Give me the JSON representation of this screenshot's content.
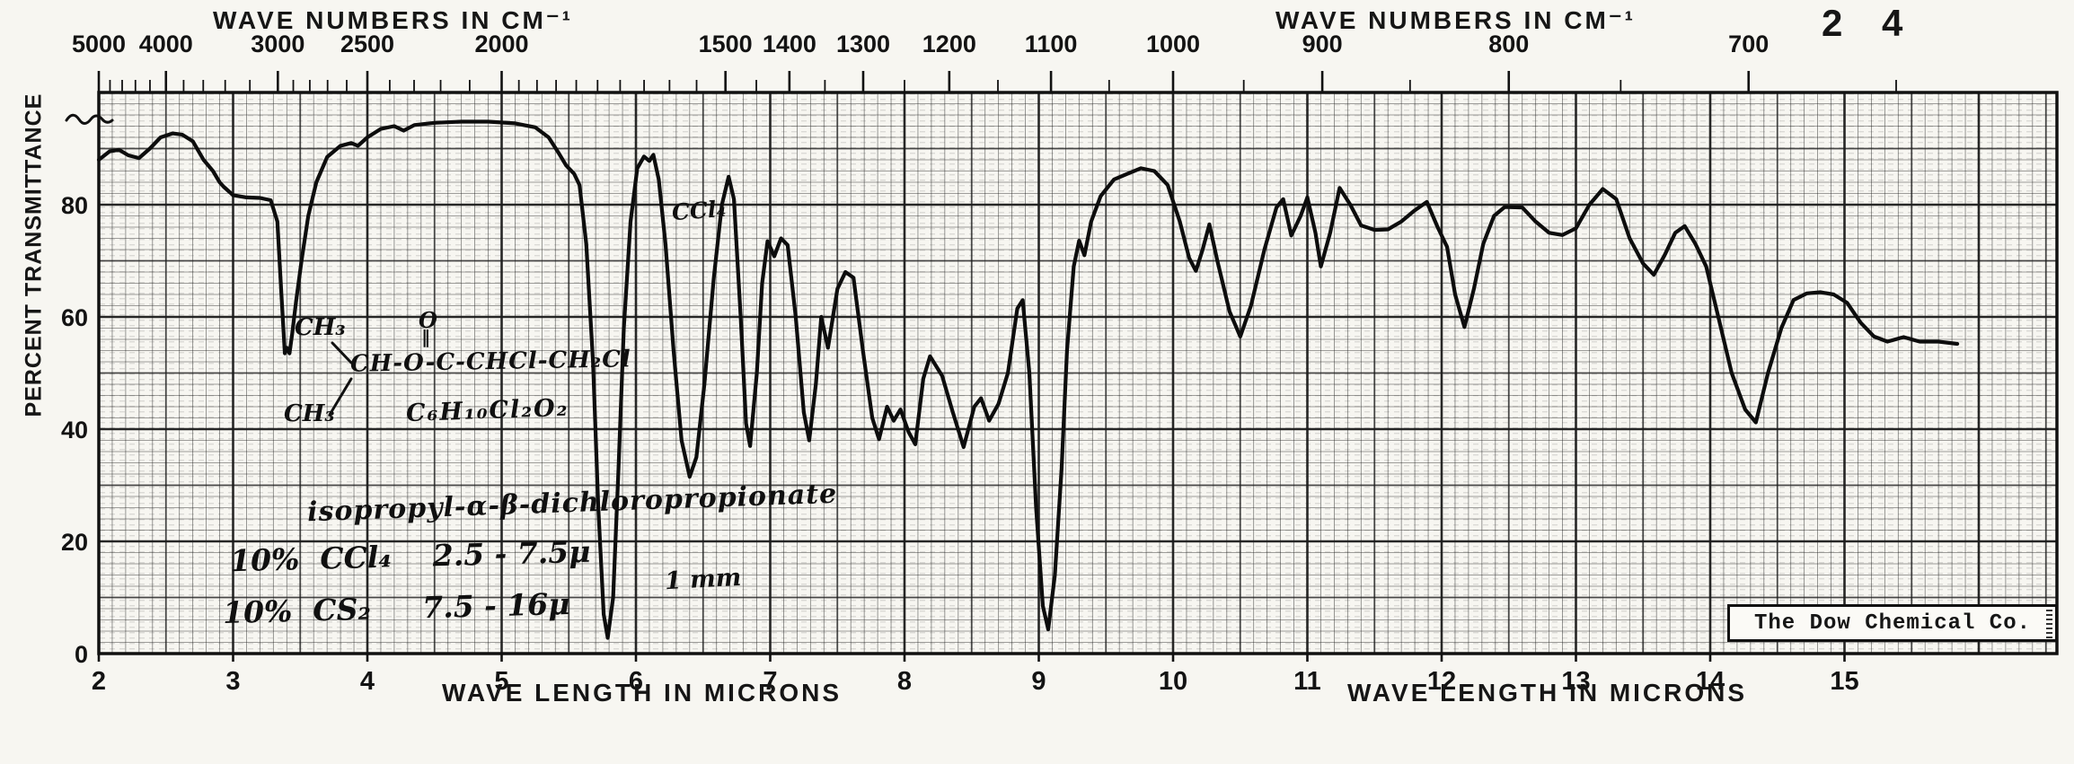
{
  "page": {
    "number": "2 4",
    "ink_color": "#161616",
    "paper_color": "#f7f6f1"
  },
  "top_axis": {
    "title": "WAVE NUMBERS IN CM⁻¹",
    "tick_labels": [
      "5000",
      "4000",
      "3000",
      "2500",
      "2000",
      "1500",
      "1400",
      "1300",
      "1200",
      "1100",
      "1000",
      "900",
      "800",
      "700"
    ],
    "tick_values": [
      5000,
      4000,
      3000,
      2500,
      2000,
      1500,
      1400,
      1300,
      1200,
      1100,
      1000,
      900,
      800,
      700
    ]
  },
  "bottom_axis": {
    "title": "WAVE LENGTH IN MICRONS",
    "tick_labels": [
      "2",
      "3",
      "4",
      "5",
      "6",
      "7",
      "8",
      "9",
      "10",
      "11",
      "12",
      "13",
      "14",
      "15"
    ],
    "tick_values": [
      2,
      3,
      4,
      5,
      6,
      7,
      8,
      9,
      10,
      11,
      12,
      13,
      14,
      15
    ]
  },
  "y_axis": {
    "title": "PERCENT TRANSMITTANCE",
    "tick_labels": [
      "80",
      "60",
      "40",
      "20",
      "0"
    ],
    "tick_values": [
      80,
      60,
      40,
      20,
      0
    ]
  },
  "branding": {
    "company": "The Dow Chemical Co."
  },
  "annotations": {
    "structure": {
      "ch3_top": "CH₃",
      "ch3_bottom": "CH₃",
      "chain": "CH-O-C-CHCl-CH₂Cl",
      "carbonyl_o": "O",
      "double_bond": "‖",
      "formula": "C₆H₁₀Cl₂O₂"
    },
    "compound_name": "isopropyl-α-β-dichloropropionate",
    "solvent_line1": "10%  CCl₄    2.5 - 7.5μ",
    "solvent_line2": "10%  CS₂     7.5 - 16μ",
    "cell_path": "1 mm",
    "band_label": "CCl₄"
  },
  "chart_data": {
    "type": "line",
    "title": "Infrared spectrum (percent transmittance vs. wavelength)",
    "xlabel": "WAVE LENGTH IN MICRONS",
    "x2label": "WAVE NUMBERS IN CM⁻¹",
    "ylabel": "PERCENT TRANSMITTANCE",
    "xlim": [
      2,
      16.6
    ],
    "ylim": [
      0,
      100
    ],
    "grid": true,
    "x2_relation": "wavenumber_cm-1 = 10000 / wavelength_microns",
    "x_ticks_microns": [
      2,
      3,
      4,
      5,
      6,
      7,
      8,
      9,
      10,
      11,
      12,
      13,
      14,
      15
    ],
    "x2_ticks_wavenumbers": [
      5000,
      4000,
      3000,
      2500,
      2000,
      1500,
      1400,
      1300,
      1200,
      1100,
      1000,
      900,
      800,
      700
    ],
    "y_ticks": [
      0,
      20,
      40,
      60,
      80
    ],
    "series": [
      {
        "name": "percent transmittance",
        "x_units": "microns",
        "y_units": "percent",
        "points": [
          [
            2.0,
            88
          ],
          [
            2.08,
            89.5
          ],
          [
            2.15,
            89.8
          ],
          [
            2.22,
            88.8
          ],
          [
            2.3,
            88.3
          ],
          [
            2.38,
            90
          ],
          [
            2.46,
            92
          ],
          [
            2.55,
            92.7
          ],
          [
            2.62,
            92.5
          ],
          [
            2.7,
            91.3
          ],
          [
            2.78,
            88
          ],
          [
            2.85,
            86
          ],
          [
            2.9,
            84
          ],
          [
            2.93,
            83.2
          ],
          [
            3.0,
            81.7
          ],
          [
            3.1,
            81.3
          ],
          [
            3.2,
            81.2
          ],
          [
            3.28,
            80.8
          ],
          [
            3.33,
            77
          ],
          [
            3.36,
            64
          ],
          [
            3.385,
            53.5
          ],
          [
            3.4,
            54.5
          ],
          [
            3.42,
            53.5
          ],
          [
            3.44,
            57
          ],
          [
            3.47,
            63
          ],
          [
            3.51,
            70
          ],
          [
            3.56,
            78
          ],
          [
            3.62,
            84
          ],
          [
            3.7,
            88.5
          ],
          [
            3.8,
            90.5
          ],
          [
            3.88,
            91
          ],
          [
            3.93,
            90.5
          ],
          [
            4.0,
            92
          ],
          [
            4.1,
            93.5
          ],
          [
            4.2,
            94
          ],
          [
            4.27,
            93.2
          ],
          [
            4.35,
            94.2
          ],
          [
            4.5,
            94.6
          ],
          [
            4.7,
            94.8
          ],
          [
            4.9,
            94.8
          ],
          [
            5.1,
            94.5
          ],
          [
            5.25,
            93.8
          ],
          [
            5.35,
            92
          ],
          [
            5.43,
            89
          ],
          [
            5.48,
            87
          ],
          [
            5.54,
            85.5
          ],
          [
            5.58,
            83.5
          ],
          [
            5.63,
            73
          ],
          [
            5.68,
            52
          ],
          [
            5.72,
            26
          ],
          [
            5.76,
            7
          ],
          [
            5.79,
            2.8
          ],
          [
            5.83,
            10
          ],
          [
            5.87,
            33
          ],
          [
            5.91,
            58
          ],
          [
            5.96,
            77
          ],
          [
            6.01,
            86.5
          ],
          [
            6.06,
            88.6
          ],
          [
            6.1,
            87.8
          ],
          [
            6.13,
            88.9
          ],
          [
            6.17,
            84.5
          ],
          [
            6.22,
            73
          ],
          [
            6.28,
            54
          ],
          [
            6.34,
            38
          ],
          [
            6.4,
            31.5
          ],
          [
            6.45,
            35
          ],
          [
            6.51,
            48
          ],
          [
            6.58,
            67
          ],
          [
            6.64,
            80
          ],
          [
            6.69,
            85
          ],
          [
            6.73,
            81
          ],
          [
            6.78,
            60
          ],
          [
            6.82,
            41
          ],
          [
            6.85,
            37
          ],
          [
            6.9,
            50
          ],
          [
            6.94,
            66
          ],
          [
            6.98,
            73.5
          ],
          [
            7.03,
            70.8
          ],
          [
            7.08,
            74
          ],
          [
            7.13,
            72.8
          ],
          [
            7.19,
            60
          ],
          [
            7.25,
            43
          ],
          [
            7.29,
            38
          ],
          [
            7.34,
            48
          ],
          [
            7.38,
            60
          ],
          [
            7.43,
            54.5
          ],
          [
            7.5,
            65
          ],
          [
            7.56,
            68
          ],
          [
            7.62,
            67
          ],
          [
            7.69,
            54
          ],
          [
            7.76,
            42
          ],
          [
            7.81,
            38.2
          ],
          [
            7.87,
            44
          ],
          [
            7.92,
            41.5
          ],
          [
            7.97,
            43.5
          ],
          [
            8.03,
            39.5
          ],
          [
            8.08,
            37.3
          ],
          [
            8.14,
            49
          ],
          [
            8.19,
            53
          ],
          [
            8.28,
            49.5
          ],
          [
            8.36,
            43
          ],
          [
            8.44,
            36.8
          ],
          [
            8.52,
            44
          ],
          [
            8.57,
            45.5
          ],
          [
            8.63,
            41.5
          ],
          [
            8.7,
            44.5
          ],
          [
            8.77,
            50
          ],
          [
            8.84,
            61.5
          ],
          [
            8.88,
            63
          ],
          [
            8.93,
            50
          ],
          [
            8.98,
            26
          ],
          [
            9.03,
            8.5
          ],
          [
            9.07,
            4.3
          ],
          [
            9.12,
            14
          ],
          [
            9.17,
            33
          ],
          [
            9.21,
            54
          ],
          [
            9.26,
            69
          ],
          [
            9.3,
            73.6
          ],
          [
            9.34,
            71
          ],
          [
            9.39,
            77
          ],
          [
            9.46,
            81.5
          ],
          [
            9.56,
            84.5
          ],
          [
            9.66,
            85.5
          ],
          [
            9.76,
            86.5
          ],
          [
            9.86,
            86
          ],
          [
            9.96,
            83.5
          ],
          [
            10.05,
            77
          ],
          [
            10.12,
            70.5
          ],
          [
            10.17,
            68.2
          ],
          [
            10.22,
            72
          ],
          [
            10.27,
            76.5
          ],
          [
            10.33,
            70
          ],
          [
            10.42,
            61
          ],
          [
            10.5,
            56.5
          ],
          [
            10.58,
            62
          ],
          [
            10.68,
            72
          ],
          [
            10.77,
            79.5
          ],
          [
            10.82,
            81
          ],
          [
            10.88,
            74.5
          ],
          [
            10.95,
            78
          ],
          [
            11.0,
            81.3
          ],
          [
            11.06,
            75
          ],
          [
            11.1,
            69
          ],
          [
            11.17,
            75
          ],
          [
            11.24,
            83
          ],
          [
            11.32,
            80
          ],
          [
            11.4,
            76.3
          ],
          [
            11.5,
            75.5
          ],
          [
            11.6,
            75.6
          ],
          [
            11.7,
            77
          ],
          [
            11.8,
            79
          ],
          [
            11.89,
            80.5
          ],
          [
            11.97,
            76
          ],
          [
            12.04,
            72.5
          ],
          [
            12.1,
            64
          ],
          [
            12.17,
            58.2
          ],
          [
            12.24,
            65
          ],
          [
            12.31,
            73
          ],
          [
            12.39,
            78
          ],
          [
            12.47,
            79.6
          ],
          [
            12.6,
            79.5
          ],
          [
            12.7,
            77
          ],
          [
            12.8,
            75
          ],
          [
            12.9,
            74.6
          ],
          [
            13.0,
            75.8
          ],
          [
            13.1,
            80
          ],
          [
            13.2,
            82.8
          ],
          [
            13.3,
            81
          ],
          [
            13.4,
            74
          ],
          [
            13.5,
            69.5
          ],
          [
            13.58,
            67.5
          ],
          [
            13.66,
            71
          ],
          [
            13.74,
            75
          ],
          [
            13.81,
            76.2
          ],
          [
            13.89,
            73
          ],
          [
            13.97,
            69
          ],
          [
            14.06,
            60
          ],
          [
            14.16,
            50
          ],
          [
            14.26,
            43.5
          ],
          [
            14.34,
            41.2
          ],
          [
            14.43,
            50
          ],
          [
            14.53,
            58
          ],
          [
            14.62,
            63
          ],
          [
            14.72,
            64.2
          ],
          [
            14.82,
            64.4
          ],
          [
            14.92,
            64
          ],
          [
            15.02,
            62.5
          ],
          [
            15.12,
            59
          ],
          [
            15.22,
            56.5
          ],
          [
            15.32,
            55.6
          ],
          [
            15.44,
            56.4
          ],
          [
            15.56,
            55.6
          ],
          [
            15.7,
            55.6
          ],
          [
            15.84,
            55.2
          ]
        ]
      }
    ]
  }
}
